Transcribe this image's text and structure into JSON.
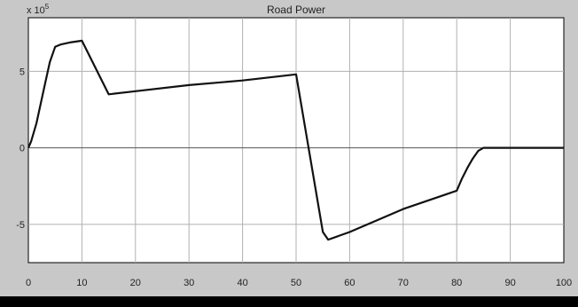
{
  "chart_data": {
    "type": "line",
    "title": "Road Power",
    "y_exponent_label": "x 10",
    "y_exponent_power": "5",
    "xlim": [
      0,
      100
    ],
    "ylim": [
      -7.5,
      8.5
    ],
    "x_ticks": [
      0,
      10,
      20,
      30,
      40,
      50,
      60,
      70,
      80,
      90,
      100
    ],
    "x_tick_labels": [
      "0",
      "10",
      "20",
      "30",
      "40",
      "50",
      "60",
      "70",
      "80",
      "90",
      "100"
    ],
    "y_ticks": [
      -5,
      0,
      5
    ],
    "y_tick_labels": [
      "-5",
      "0",
      "5"
    ],
    "grid": true,
    "series": [
      {
        "x": [
          0,
          0.5,
          1.5,
          3,
          4,
          5,
          6,
          8,
          10,
          15,
          20,
          30,
          40,
          50,
          55,
          56,
          60,
          70,
          80,
          81,
          82,
          83,
          84,
          85,
          90,
          100
        ],
        "y": [
          0,
          0.4,
          1.6,
          4.0,
          5.6,
          6.6,
          6.75,
          6.9,
          7.0,
          3.5,
          3.7,
          4.1,
          4.4,
          4.8,
          -5.5,
          -6.0,
          -5.5,
          -4.0,
          -2.8,
          -2.0,
          -1.3,
          -0.7,
          -0.2,
          0,
          0,
          0
        ],
        "color": "#111111"
      }
    ]
  },
  "colors": {
    "frame": "#c8c8c8",
    "plot_bg": "#ffffff",
    "grid": "#b0b0b0",
    "axis": "#000000",
    "line": "#111111"
  }
}
